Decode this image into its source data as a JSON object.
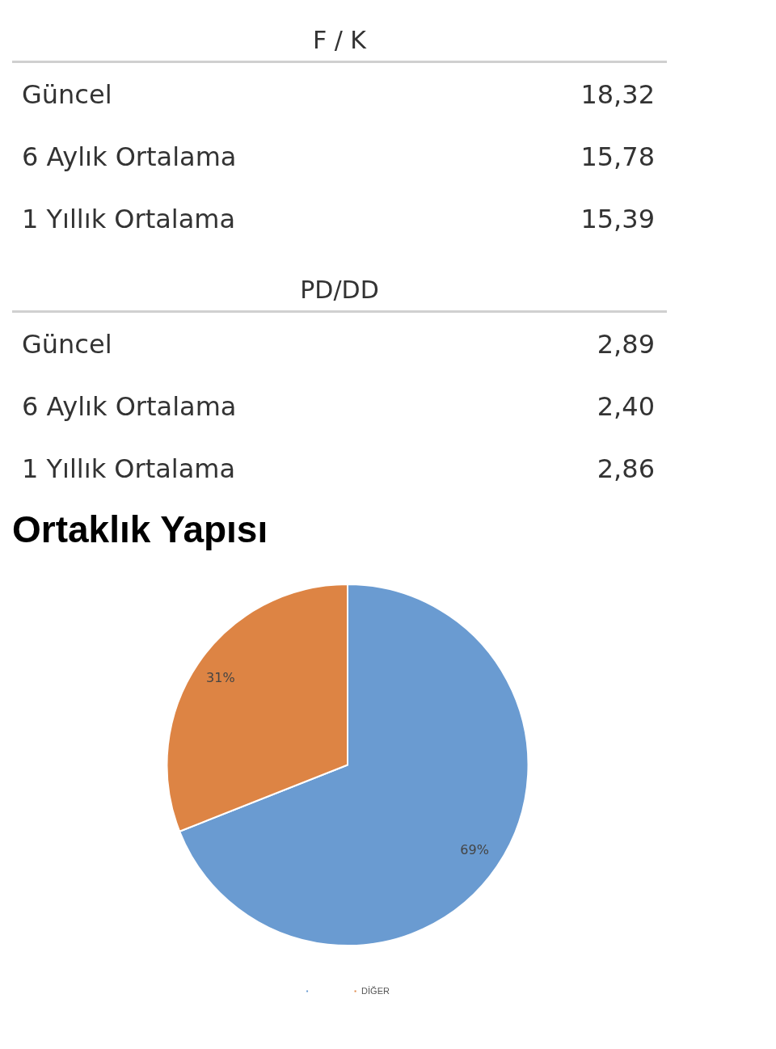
{
  "chart_data": [
    {
      "type": "other",
      "title": "F / K",
      "categories": [
        "Güncel",
        "6 Aylık Ortalama",
        "1 Yıllık Ortalama"
      ],
      "values": [
        18.32,
        15.78,
        15.39
      ],
      "value_labels": [
        "18,32",
        "15,78",
        "15,39"
      ]
    },
    {
      "type": "other",
      "title": "PD/DD",
      "categories": [
        "Güncel",
        "6 Aylık Ortalama",
        "1 Yıllık Ortalama"
      ],
      "values": [
        2.89,
        2.4,
        2.86
      ],
      "value_labels": [
        "2,89",
        "2,40",
        "2,86"
      ]
    },
    {
      "type": "pie",
      "title": "Ortaklık Yapısı",
      "categories": [
        null,
        "DİĞER"
      ],
      "values": [
        69,
        31
      ],
      "colors": [
        "#6a9bd1",
        "#dd8444"
      ],
      "value_labels": [
        "69%",
        "31%"
      ],
      "legend": "bottom"
    }
  ]
}
